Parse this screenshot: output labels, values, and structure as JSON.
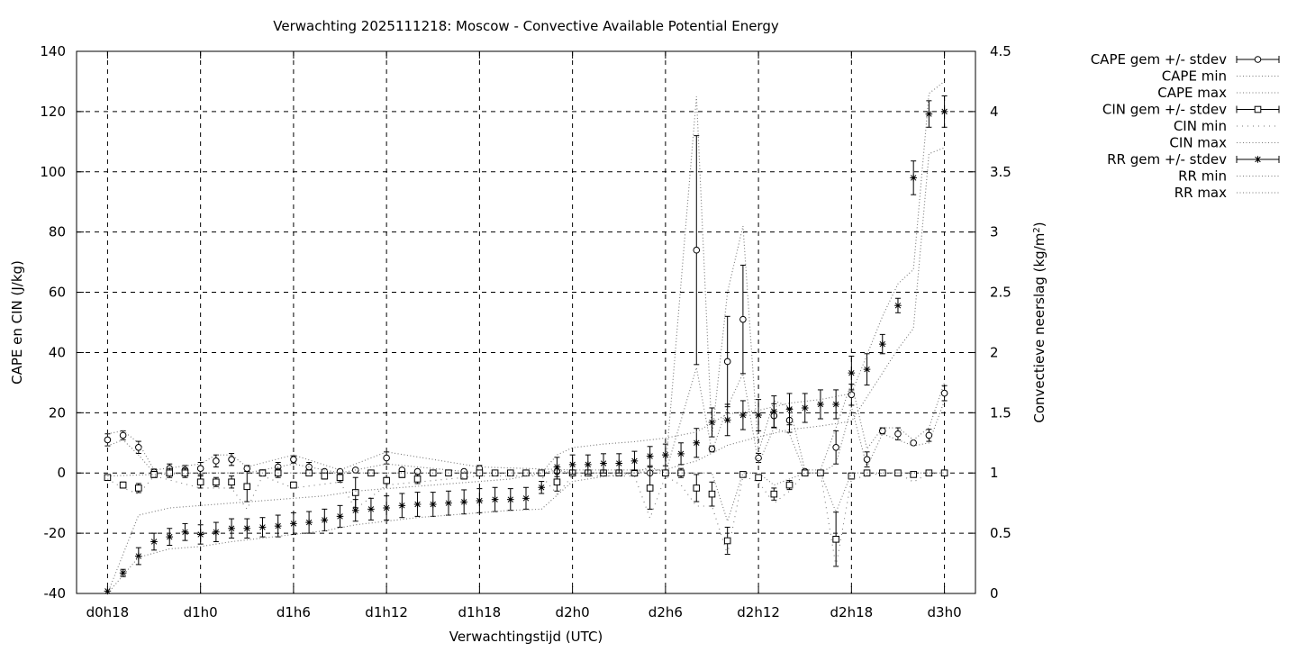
{
  "chart_data": {
    "type": "scatter",
    "title": "Verwachting 2025111218: Moscow - Convective Available Potential Energy",
    "xlabel": "Verwachtingstijd (UTC)",
    "ylabel": "CAPE en CIN (J/kg)",
    "y2label_prefix": "Convectieve neerslag (kg/m",
    "y2label_sup": "2",
    "y2label_suffix": ")",
    "x_unit": "hours since d0h0",
    "xlim": [
      16,
      74
    ],
    "ylim": [
      -40,
      140
    ],
    "y2lim": [
      0,
      4.5
    ],
    "grid": true,
    "legend_position": "outside-right",
    "x_ticks": [
      {
        "x": 18,
        "label": "d0h18"
      },
      {
        "x": 24,
        "label": "d1h0"
      },
      {
        "x": 30,
        "label": "d1h6"
      },
      {
        "x": 36,
        "label": "d1h12"
      },
      {
        "x": 42,
        "label": "d1h18"
      },
      {
        "x": 48,
        "label": "d2h0"
      },
      {
        "x": 54,
        "label": "d2h6"
      },
      {
        "x": 60,
        "label": "d2h12"
      },
      {
        "x": 66,
        "label": "d2h18"
      },
      {
        "x": 72,
        "label": "d3h0"
      }
    ],
    "y_ticks": [
      "-40",
      "-20",
      "0",
      "20",
      "40",
      "60",
      "80",
      "100",
      "120",
      "140"
    ],
    "y2_ticks": [
      "0",
      "0.5",
      "1",
      "1.5",
      "2",
      "2.5",
      "3",
      "3.5",
      "4",
      "4.5"
    ],
    "legend": [
      {
        "label": "CAPE gem +/- stdev",
        "style": "circle"
      },
      {
        "label": "CAPE min",
        "style": "dot"
      },
      {
        "label": "CAPE max",
        "style": "dot"
      },
      {
        "label": "CIN gem +/- stdev",
        "style": "square"
      },
      {
        "label": "CIN min",
        "style": "sparse-dot"
      },
      {
        "label": "CIN max",
        "style": "dot"
      },
      {
        "label": "RR gem +/- stdev",
        "style": "star"
      },
      {
        "label": "RR min",
        "style": "dot"
      },
      {
        "label": "RR max",
        "style": "dot"
      }
    ],
    "series": [
      {
        "name": "CAPE gem +/- stdev",
        "axis": "y",
        "marker": "circle",
        "x": [
          18,
          19,
          20,
          21,
          22,
          23,
          24,
          25,
          26,
          27,
          28,
          29,
          30,
          31,
          32,
          33,
          34,
          35,
          36,
          37,
          38,
          39,
          40,
          41,
          42,
          43,
          44,
          45,
          46,
          47,
          48,
          49,
          50,
          51,
          52,
          53,
          54,
          55,
          56,
          57,
          58,
          59,
          60,
          61,
          62,
          63,
          64,
          65,
          66,
          67,
          68,
          69,
          70,
          71,
          72
        ],
        "values": [
          11,
          12.5,
          8.5,
          0.3,
          1.5,
          1,
          1.5,
          4,
          4.5,
          1.5,
          0,
          2,
          4.5,
          2,
          0.5,
          0.5,
          1,
          0,
          5,
          1,
          0.5,
          0,
          0,
          0.5,
          1.5,
          0,
          0,
          0,
          0,
          0.5,
          0,
          0,
          0,
          0,
          0,
          0,
          0,
          0,
          74,
          8,
          37,
          51,
          5,
          19,
          17.5,
          0.5,
          0,
          8.5,
          26,
          4.5,
          14,
          13,
          10,
          12.5,
          26.5
        ],
        "err": [
          2,
          1.5,
          2,
          1,
          1.5,
          1.5,
          2,
          2,
          2,
          1,
          1,
          1.5,
          1.2,
          1.5,
          0.5,
          0.5,
          0.5,
          0,
          2,
          0.5,
          0.5,
          0,
          0,
          0.5,
          1,
          0,
          0,
          0,
          0,
          0.5,
          0,
          0,
          0,
          0,
          0,
          0,
          0,
          0,
          38,
          1,
          15,
          18,
          1.5,
          4,
          4,
          0.5,
          0,
          5.5,
          3.5,
          2.5,
          1,
          2,
          0.5,
          2,
          2.5
        ]
      },
      {
        "name": "CAPE min",
        "axis": "y",
        "line": "dot",
        "x": [
          18,
          19,
          20,
          21,
          24,
          27,
          30,
          33,
          36,
          42,
          48,
          54,
          56,
          57,
          58,
          59,
          60,
          61,
          62,
          63,
          64,
          65,
          66,
          67,
          68,
          69,
          70,
          71,
          72
        ],
        "values": [
          9,
          11,
          6,
          0,
          0,
          0,
          3,
          0,
          3,
          0,
          0,
          0,
          35,
          7,
          22,
          33,
          3,
          15,
          13,
          0,
          0,
          3,
          22,
          2,
          13,
          11,
          9,
          10,
          24
        ]
      },
      {
        "name": "CAPE max",
        "axis": "y",
        "line": "dot",
        "x": [
          18,
          19,
          20,
          21,
          24,
          25,
          26,
          27,
          30,
          33,
          36,
          42,
          48,
          54,
          56,
          57,
          58,
          59,
          60,
          61,
          62,
          63,
          64,
          65,
          66,
          67,
          68,
          69,
          70,
          71,
          72
        ],
        "values": [
          13,
          14,
          10,
          1,
          3,
          6,
          6,
          2,
          6,
          1,
          7,
          2,
          1,
          1,
          125,
          12,
          60,
          82,
          7,
          24,
          22,
          1,
          1,
          15,
          30,
          8,
          15,
          15,
          11,
          15,
          30
        ]
      },
      {
        "name": "CIN gem +/- stdev",
        "axis": "y",
        "marker": "square",
        "x": [
          18,
          19,
          20,
          21,
          22,
          23,
          24,
          25,
          26,
          27,
          28,
          29,
          30,
          31,
          32,
          33,
          34,
          35,
          36,
          37,
          38,
          39,
          40,
          41,
          42,
          43,
          44,
          45,
          46,
          47,
          48,
          49,
          50,
          51,
          52,
          53,
          54,
          55,
          56,
          57,
          58,
          59,
          60,
          61,
          62,
          63,
          64,
          65,
          66,
          67,
          68,
          69,
          70,
          71,
          72
        ],
        "values": [
          -1.5,
          -4,
          -5,
          -0.5,
          0,
          0,
          -3,
          -3,
          -3,
          -4.5,
          0,
          0,
          -4,
          0,
          -1,
          -1.5,
          -6.5,
          0,
          -2.5,
          -0.5,
          -2,
          0,
          0,
          -1,
          0,
          0,
          0,
          0,
          0,
          -3,
          0,
          0,
          0,
          0,
          0,
          -5,
          0,
          0,
          -5,
          -7,
          -22.5,
          -0.5,
          -1.5,
          -7,
          -4,
          0,
          0,
          -22,
          -1,
          0,
          0,
          0,
          -0.5,
          0,
          0
        ],
        "err": [
          0.5,
          1,
          1.5,
          1,
          1.5,
          1.5,
          2,
          1.5,
          2,
          5,
          1,
          1.5,
          1,
          0.5,
          1,
          1.5,
          5,
          0.5,
          1,
          1,
          1.5,
          0.5,
          0.5,
          1,
          0.5,
          0,
          0,
          0,
          0,
          3,
          0.5,
          0.5,
          0.5,
          0.5,
          0.5,
          7,
          0.5,
          1.5,
          4.5,
          4,
          4.5,
          0.5,
          1,
          2,
          1.5,
          0,
          0,
          9,
          1,
          0.5,
          0,
          0,
          0.5,
          0,
          0
        ]
      },
      {
        "name": "CIN min",
        "axis": "y",
        "line": "sparse-dot",
        "x": [
          18,
          19,
          20,
          21,
          24,
          26,
          27,
          28,
          30,
          33,
          34,
          36,
          42,
          46,
          47,
          48,
          52,
          53,
          54,
          55,
          56,
          57,
          58,
          59,
          60,
          61,
          62,
          63,
          64,
          65,
          66,
          67,
          68,
          69,
          70,
          71,
          72
        ],
        "values": [
          -2,
          -5,
          -7,
          -1,
          -5,
          -5,
          -12,
          -1,
          -5,
          -3,
          -12,
          -4,
          -1,
          -1,
          -7,
          -1,
          -1,
          -15,
          -1,
          -4,
          -11,
          -11,
          -27,
          -1,
          -3,
          -10,
          -6,
          0,
          0,
          -31,
          -2,
          -1,
          0,
          0,
          -3,
          0,
          0
        ]
      },
      {
        "name": "CIN max",
        "axis": "y",
        "line": "dot",
        "x": [
          18,
          24,
          30,
          33,
          36,
          42,
          46,
          47,
          48,
          52,
          53,
          54,
          55,
          56,
          57,
          58,
          59,
          60,
          61,
          62,
          63,
          64,
          65,
          66,
          72
        ],
        "values": [
          -1,
          0,
          0,
          0,
          0,
          0,
          0,
          1,
          0,
          0,
          2,
          0,
          0,
          0,
          0,
          -16,
          0,
          0,
          -4,
          -2,
          0,
          0,
          -13,
          0,
          0
        ]
      },
      {
        "name": "RR gem +/- stdev",
        "axis": "y2",
        "marker": "star",
        "x": [
          18,
          19,
          20,
          21,
          22,
          23,
          24,
          25,
          26,
          27,
          28,
          29,
          30,
          31,
          32,
          33,
          34,
          35,
          36,
          37,
          38,
          39,
          40,
          41,
          42,
          43,
          44,
          45,
          46,
          47,
          48,
          49,
          50,
          51,
          52,
          53,
          54,
          55,
          56,
          57,
          58,
          59,
          60,
          61,
          62,
          63,
          64,
          65,
          66,
          67,
          68,
          69,
          70,
          71,
          72
        ],
        "values": [
          0.02,
          0.17,
          0.31,
          0.43,
          0.47,
          0.51,
          0.49,
          0.51,
          0.54,
          0.54,
          0.55,
          0.56,
          0.58,
          0.59,
          0.61,
          0.64,
          0.69,
          0.7,
          0.71,
          0.73,
          0.74,
          0.74,
          0.75,
          0.76,
          0.77,
          0.78,
          0.78,
          0.79,
          0.88,
          1.05,
          1.07,
          1.07,
          1.08,
          1.08,
          1.1,
          1.14,
          1.15,
          1.16,
          1.25,
          1.42,
          1.44,
          1.48,
          1.48,
          1.51,
          1.53,
          1.54,
          1.57,
          1.57,
          1.83,
          1.86,
          2.07,
          2.39,
          3.45,
          3.98,
          4.0
        ],
        "err": [
          0,
          0.03,
          0.07,
          0.07,
          0.07,
          0.07,
          0.08,
          0.08,
          0.08,
          0.08,
          0.08,
          0.09,
          0.09,
          0.09,
          0.09,
          0.09,
          0.09,
          0.09,
          0.1,
          0.1,
          0.1,
          0.1,
          0.1,
          0.1,
          0.1,
          0.1,
          0.09,
          0.09,
          0.05,
          0.08,
          0.08,
          0.08,
          0.08,
          0.08,
          0.08,
          0.08,
          0.09,
          0.09,
          0.12,
          0.12,
          0.13,
          0.12,
          0.13,
          0.13,
          0.13,
          0.12,
          0.12,
          0.12,
          0.14,
          0.13,
          0.08,
          0.06,
          0.14,
          0.11,
          0.13
        ]
      },
      {
        "name": "RR min",
        "axis": "y2",
        "line": "dot",
        "x": [
          18,
          20,
          22,
          24,
          26,
          28,
          30,
          32,
          34,
          36,
          38,
          40,
          42,
          44,
          46,
          48,
          50,
          52,
          54,
          56,
          58,
          60,
          62,
          64,
          66,
          68,
          69,
          70,
          71,
          72
        ],
        "values": [
          0,
          0.3,
          0.37,
          0.39,
          0.43,
          0.46,
          0.49,
          0.52,
          0.57,
          0.6,
          0.63,
          0.65,
          0.67,
          0.69,
          0.7,
          0.93,
          0.97,
          1.0,
          1.03,
          1.1,
          1.23,
          1.3,
          1.36,
          1.39,
          1.43,
          1.83,
          2.03,
          2.2,
          3.65,
          3.7
        ]
      },
      {
        "name": "RR max",
        "axis": "y2",
        "line": "dot",
        "x": [
          18,
          20,
          22,
          24,
          26,
          28,
          30,
          32,
          34,
          36,
          38,
          40,
          42,
          44,
          46,
          47,
          48,
          50,
          52,
          54,
          56,
          58,
          60,
          62,
          64,
          66,
          68,
          69,
          70,
          71,
          72
        ],
        "values": [
          0,
          0.65,
          0.71,
          0.73,
          0.75,
          0.77,
          0.79,
          0.81,
          0.85,
          0.87,
          0.89,
          0.91,
          0.93,
          0.95,
          1.0,
          1.15,
          1.21,
          1.24,
          1.26,
          1.29,
          1.34,
          1.49,
          1.52,
          1.58,
          1.61,
          1.66,
          2.3,
          2.57,
          2.69,
          4.15,
          4.25
        ]
      }
    ]
  }
}
